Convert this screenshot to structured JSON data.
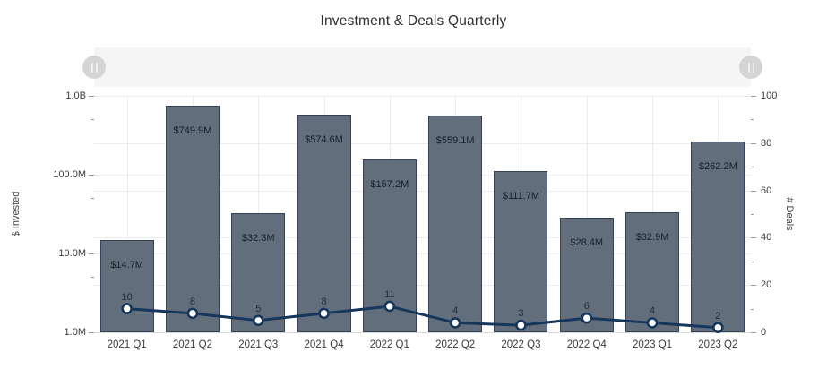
{
  "title": "Investment & Deals Quarterly",
  "navigator": {
    "left_handle_icon": "drag-grip",
    "right_handle_icon": "drag-grip"
  },
  "chart_data": {
    "type": "bar+line combo (dual axis)",
    "title": "Investment & Deals Quarterly",
    "categories": [
      "2021 Q1",
      "2021 Q2",
      "2021 Q3",
      "2021 Q4",
      "2022 Q1",
      "2022 Q2",
      "2022 Q3",
      "2022 Q4",
      "2023 Q1",
      "2023 Q2"
    ],
    "series": [
      {
        "name": "$ Invested",
        "type": "bar",
        "yaxis": "left",
        "values_million_usd": [
          14.7,
          749.9,
          32.3,
          574.6,
          157.2,
          559.1,
          111.7,
          28.4,
          32.9,
          262.2
        ],
        "data_labels": [
          "$14.7M",
          "$749.9M",
          "$32.3M",
          "$574.6M",
          "$157.2M",
          "$559.1M",
          "$111.7M",
          "$28.4M",
          "$32.9M",
          "$262.2M"
        ]
      },
      {
        "name": "# Deals",
        "type": "line",
        "yaxis": "right",
        "values": [
          10,
          8,
          5,
          8,
          11,
          4,
          3,
          6,
          4,
          2
        ]
      }
    ],
    "left_axis": {
      "label": "$ Invested",
      "scale": "log",
      "range_million_usd": [
        1,
        1000
      ],
      "tick_labels": [
        "1.0B",
        "100.0M",
        "10.0M",
        "1.0M"
      ],
      "tick_values_million": [
        1000,
        100,
        10,
        1
      ],
      "minor_tick_values_million": [
        500,
        50,
        5
      ]
    },
    "right_axis": {
      "label": "# Deals",
      "scale": "linear",
      "range": [
        0,
        100
      ],
      "tick_labels": [
        "100",
        "80",
        "60",
        "40",
        "20",
        "0"
      ],
      "tick_values": [
        100,
        80,
        60,
        40,
        20,
        0
      ],
      "minor_tick_values": [
        90,
        70,
        50,
        30,
        10
      ]
    },
    "legend": "none",
    "grid": true
  },
  "colors": {
    "bar_fill": "#626e7c",
    "bar_border": "#344359",
    "line": "#16365c",
    "marker_fill": "#ffffff",
    "grid": "#ececec",
    "axis_line": "#d9d9d9",
    "navigator_track": "#f5f5f5",
    "navigator_handle": "#d5d5d5"
  }
}
